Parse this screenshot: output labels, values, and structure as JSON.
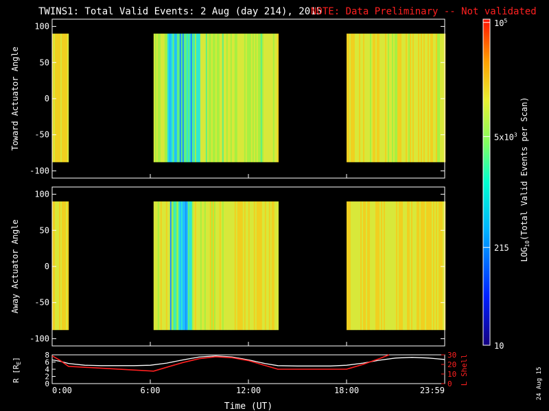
{
  "title": {
    "main": "TWINS1: Total Valid Events:  2 Aug (day 214), 2015",
    "note": "NOTE: Data Preliminary -- Not validated"
  },
  "stamp": "24 Aug 15",
  "colors": {
    "background": "#000000",
    "text": "#ffffff",
    "note": "#ff2020",
    "r_line": "#ffffff",
    "lshell_line": "#ff2020"
  },
  "chart_data": [
    {
      "type": "heatmap",
      "name": "toward",
      "ylabel": "Toward Actuator Angle",
      "ylim": [
        -110,
        110
      ],
      "yticks": [
        100,
        50,
        0,
        -50,
        -100
      ],
      "data_ylim": [
        -88,
        90
      ],
      "xlim_hours": [
        0,
        24
      ],
      "data_segments_hours": [
        [
          0,
          1.0
        ],
        [
          6.2,
          13.8
        ],
        [
          18.0,
          24.0
        ]
      ],
      "base_color": "#d8e83a"
    },
    {
      "type": "heatmap",
      "name": "away",
      "ylabel": "Away Actuator Angle",
      "ylim": [
        -110,
        110
      ],
      "yticks": [
        100,
        50,
        0,
        -50,
        -100
      ],
      "data_ylim": [
        -88,
        90
      ],
      "xlim_hours": [
        0,
        24
      ],
      "data_segments_hours": [
        [
          0,
          1.0
        ],
        [
          6.2,
          13.8
        ],
        [
          18.0,
          24.0
        ]
      ],
      "base_color": "#f2d51e"
    },
    {
      "type": "line",
      "name": "ephemeris",
      "ylabel": "R [R",
      "ylabel_sub": "E",
      "ylabel_end": "]",
      "ylabel_right": "L Shell",
      "xlabel": "Time (UT)",
      "xlim_hours": [
        0,
        24
      ],
      "xticks": [
        "0:00",
        "6:00",
        "12:00",
        "18:00",
        "23:59"
      ],
      "ylim_left": [
        0,
        8
      ],
      "yticks_left": [
        0,
        2,
        4,
        6,
        8
      ],
      "ylim_right": [
        0,
        30
      ],
      "yticks_right": [
        0,
        10,
        20,
        30
      ],
      "series": [
        {
          "axis": "left",
          "x": [
            0,
            0.5,
            1,
            2,
            3,
            4,
            5,
            6,
            7,
            8,
            9,
            10,
            11,
            12,
            13,
            13.8,
            15,
            16,
            17,
            18,
            19,
            20,
            21,
            22,
            23,
            24
          ],
          "values": [
            6.6,
            6.2,
            5.6,
            5.1,
            5.0,
            5.0,
            5.0,
            5.1,
            5.7,
            6.6,
            7.4,
            7.7,
            7.4,
            6.6,
            5.6,
            5.0,
            4.9,
            4.9,
            4.9,
            5.1,
            5.7,
            6.5,
            7.1,
            7.3,
            7.1,
            6.7
          ]
        },
        {
          "axis": "right",
          "x": [
            0,
            0.5,
            1,
            6.2,
            7,
            8,
            9,
            10,
            11,
            12,
            13,
            13.8,
            18.0,
            19,
            20,
            20.6
          ],
          "values": [
            29,
            24,
            18,
            13,
            17,
            22,
            26,
            28,
            27,
            24,
            19,
            15,
            15,
            20,
            26,
            30
          ]
        }
      ]
    }
  ],
  "colorbar": {
    "label_main": "LOG",
    "label_sub": "10",
    "label_rest": "(Total Valid Events per Scan)",
    "ticks": [
      {
        "base": "10",
        "sup": "5",
        "fraction": 0.99
      },
      {
        "base": "5x10",
        "sup": "3",
        "fraction": 0.64
      },
      {
        "base": "215",
        "sup": "",
        "fraction": 0.3
      },
      {
        "base": "10",
        "sup": "",
        "fraction": 0.0
      }
    ]
  }
}
